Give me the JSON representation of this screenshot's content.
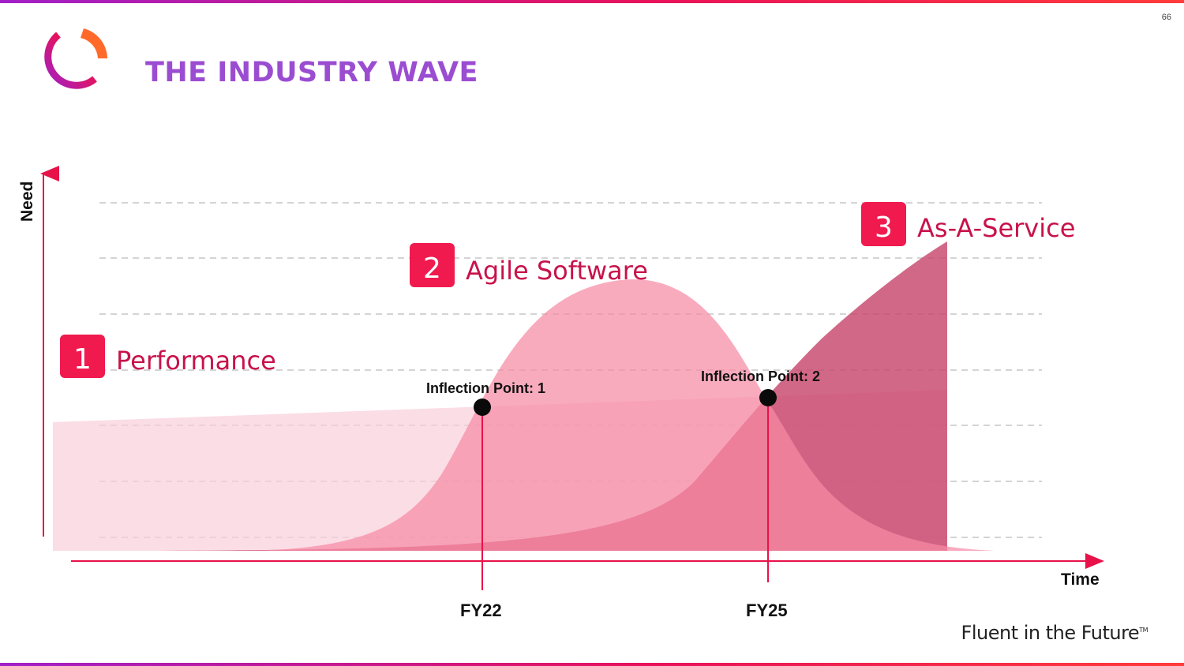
{
  "page_number": "66",
  "title": "THE INDUSTRY WAVE",
  "axes": {
    "y_label": "Need",
    "x_label": "Time"
  },
  "stages": [
    {
      "number": "1",
      "label": "Performance"
    },
    {
      "number": "2",
      "label": "Agile Software"
    },
    {
      "number": "3",
      "label": "As-A-Service"
    }
  ],
  "inflection_points": [
    {
      "label": "Inflection Point: 1",
      "year": "FY22"
    },
    {
      "label": "Inflection Point: 2",
      "year": "FY25"
    }
  ],
  "footer": {
    "tagline": "Fluent in the Future",
    "tm": "TM"
  },
  "colors": {
    "accent_red": "#e8124a",
    "title_purple": "#9b4dd1",
    "stage_text": "#c8124a",
    "wave_light": "#fbd6e0",
    "wave_mid": "#f78ba5",
    "wave_dark": "#c8476d"
  }
}
